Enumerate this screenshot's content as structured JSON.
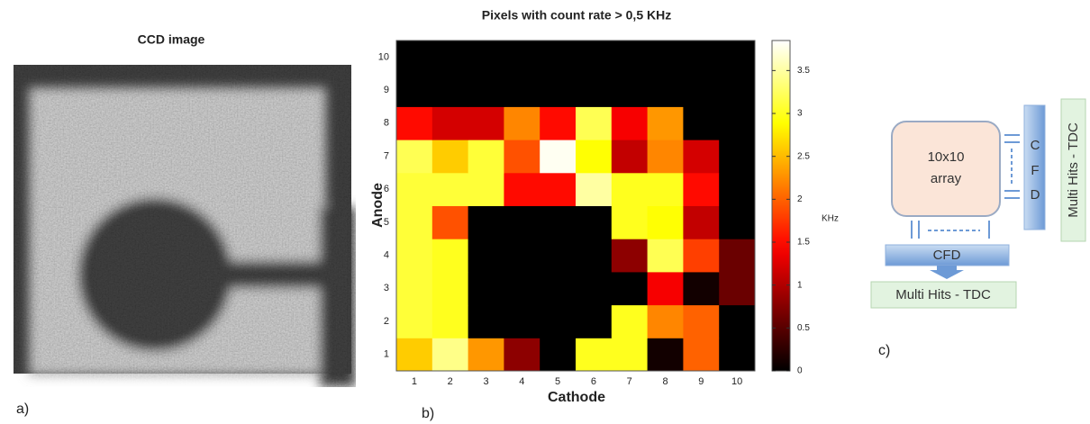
{
  "chart_data": {
    "type": "heatmap",
    "title": "Pixels with count rate > 0,5 KHz",
    "x_label": "Cathode",
    "y_label": "Anode",
    "categories": [
      1,
      2,
      3,
      4,
      5,
      6,
      7,
      8,
      9,
      10
    ],
    "y_categories": [
      1,
      2,
      3,
      4,
      5,
      6,
      7,
      8,
      9,
      10
    ],
    "values": [
      [
        2.6,
        3.4,
        2.3,
        0.8,
        0,
        3.0,
        3.0,
        0.1,
        2.0,
        0
      ],
      [
        3.1,
        3.0,
        0,
        0,
        0,
        0,
        3.0,
        2.2,
        2.0,
        0
      ],
      [
        3.1,
        3.0,
        0,
        0,
        0,
        0,
        0,
        1.4,
        0.1,
        0.6
      ],
      [
        3.1,
        3.0,
        0,
        0,
        0,
        0,
        0.8,
        3.2,
        1.8,
        0.6
      ],
      [
        3.1,
        1.9,
        0,
        0,
        0,
        0,
        3.0,
        2.9,
        1.1,
        0
      ],
      [
        3.1,
        3.1,
        3.1,
        1.5,
        1.5,
        3.5,
        3.0,
        3.0,
        1.5,
        0
      ],
      [
        3.2,
        2.6,
        3.1,
        1.9,
        3.8,
        2.9,
        1.1,
        2.2,
        1.2,
        0
      ],
      [
        1.5,
        1.2,
        1.2,
        2.2,
        1.5,
        3.2,
        1.4,
        2.3,
        0,
        0
      ],
      [
        0,
        0,
        0,
        0,
        0,
        0,
        0,
        0,
        0,
        0
      ],
      [
        0,
        0,
        0,
        0,
        0,
        0,
        0,
        0,
        0,
        0
      ]
    ],
    "colormap": "hot",
    "zlim": [
      0,
      3.85
    ],
    "zticks": [
      0,
      0.5,
      1,
      1.5,
      2,
      2.5,
      3,
      3.5
    ],
    "colorbar_label": "KHz"
  },
  "ccd": {
    "title": "CCD image"
  },
  "panel_labels": [
    "a)",
    "b)",
    "c)"
  ],
  "diagram": {
    "array_label": [
      "10x10",
      "array"
    ],
    "cfd_bottom": "CFD",
    "cfd_right": [
      "C",
      "F",
      "D"
    ],
    "tdc_bottom": "Multi Hits - TDC",
    "tdc_right": "Multi Hits - TDC"
  }
}
